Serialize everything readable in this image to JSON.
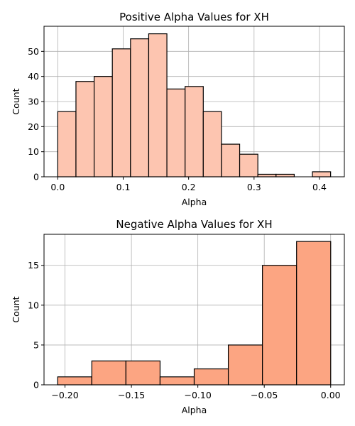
{
  "chart_data": [
    {
      "type": "bar",
      "title": "Positive Alpha Values for XH",
      "xlabel": "Alpha",
      "ylabel": "Count",
      "color": "#fdc5b0",
      "bin_start": 0.0,
      "bin_width": 0.0278,
      "values": [
        26,
        38,
        40,
        51,
        55,
        57,
        35,
        36,
        26,
        13,
        9,
        1,
        1,
        0,
        2
      ],
      "xlim": [
        -0.021,
        0.438
      ],
      "ylim": [
        0,
        60
      ],
      "xticks": [
        0.0,
        0.1,
        0.2,
        0.3,
        0.4
      ],
      "xtick_labels": [
        "0.0",
        "0.1",
        "0.2",
        "0.3",
        "0.4"
      ],
      "yticks": [
        0,
        10,
        20,
        30,
        40,
        50
      ],
      "ytick_labels": [
        "0",
        "10",
        "20",
        "30",
        "40",
        "50"
      ],
      "grid": true
    },
    {
      "type": "bar",
      "title": "Negative Alpha Values for XH",
      "xlabel": "Alpha",
      "ylabel": "Count",
      "color": "#fca582",
      "bin_start": -0.2055,
      "bin_width": 0.02569,
      "values": [
        1,
        3,
        3,
        1,
        2,
        5,
        15,
        18
      ],
      "xlim": [
        -0.2158,
        0.0103
      ],
      "ylim": [
        0,
        18.9
      ],
      "xticks": [
        -0.2,
        -0.15,
        -0.1,
        -0.05,
        0.0
      ],
      "xtick_labels": [
        "−0.20",
        "−0.15",
        "−0.10",
        "−0.05",
        "0.00"
      ],
      "yticks": [
        0,
        5,
        10,
        15
      ],
      "ytick_labels": [
        "0",
        "5",
        "10",
        "15"
      ],
      "grid": true
    }
  ]
}
